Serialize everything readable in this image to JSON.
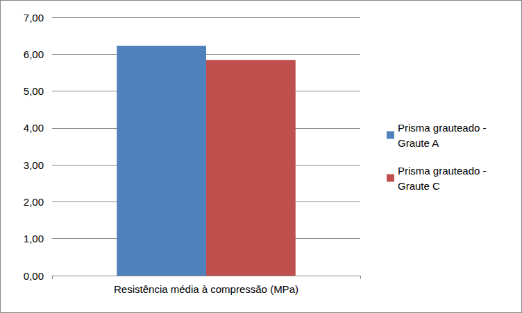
{
  "chart_data": {
    "type": "bar",
    "categories": [
      "Resistência média à compressão (MPa)"
    ],
    "series": [
      {
        "name": "Prisma grauteado - Graute A",
        "color": "#4f81bd",
        "values": [
          6.23
        ]
      },
      {
        "name": "Prisma grauteado - Graute C",
        "color": "#c0504d",
        "values": [
          5.84
        ]
      }
    ],
    "ylim": [
      0,
      7
    ],
    "yticks": [
      {
        "value": 0,
        "label": "0,00"
      },
      {
        "value": 1,
        "label": "1,00"
      },
      {
        "value": 2,
        "label": "2,00"
      },
      {
        "value": 3,
        "label": "3,00"
      },
      {
        "value": 4,
        "label": "4,00"
      },
      {
        "value": 5,
        "label": "5,00"
      },
      {
        "value": 6,
        "label": "6,00"
      },
      {
        "value": 7,
        "label": "7,00"
      }
    ],
    "grid": true,
    "legend": "right"
  }
}
